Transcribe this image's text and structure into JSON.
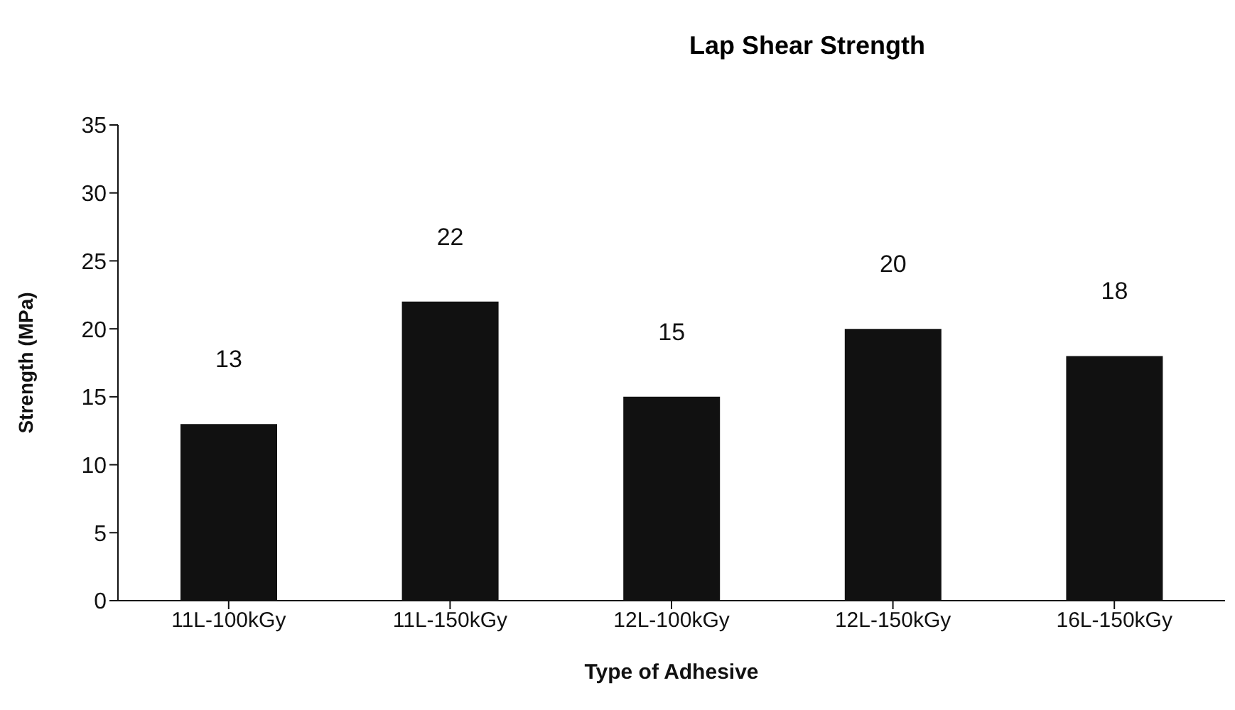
{
  "chart_data": {
    "type": "bar",
    "title": "Lap Shear Strength",
    "xlabel": "Type of Adhesive",
    "ylabel": "Strength (MPa)",
    "categories": [
      "11L-100kGy",
      "11L-150kGy",
      "12L-100kGy",
      "12L-150kGy",
      "16L-150kGy"
    ],
    "values": [
      13,
      22,
      15,
      20,
      18
    ],
    "color": "#111111",
    "ylim": [
      0,
      35
    ],
    "yticks": [
      0,
      5,
      10,
      15,
      20,
      25,
      30,
      35
    ],
    "data_labels": true,
    "grid": false,
    "legend": false
  }
}
